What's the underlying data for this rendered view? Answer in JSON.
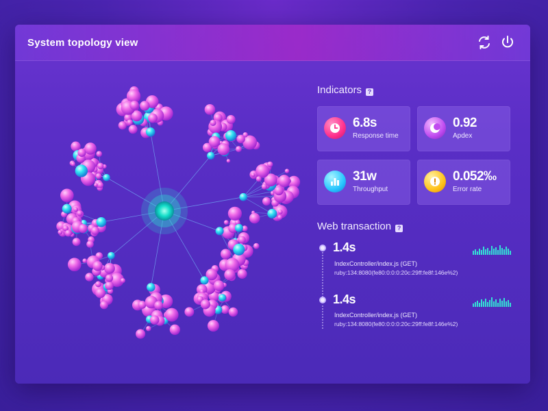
{
  "header": {
    "title": "System topology view"
  },
  "indicators": {
    "title": "Indicators",
    "help_glyph": "?",
    "cards": [
      {
        "value": "6.8s",
        "label": "Response time",
        "icon": "clock-icon",
        "color": "#ff2f8c"
      },
      {
        "value": "0.92",
        "label": "Apdex",
        "icon": "moon-icon",
        "color": "#c04bf0"
      },
      {
        "value": "31w",
        "label": "Throughput",
        "icon": "bar-chart-icon",
        "color": "#27c6ff"
      },
      {
        "value": "0.052‰",
        "label": "Error rate",
        "icon": "warning-icon",
        "color": "#ffc21a"
      }
    ]
  },
  "web_transaction": {
    "title": "Web transaction",
    "help_glyph": "?",
    "items": [
      {
        "value": "1.4s",
        "endpoint": "IndexController/index.js (GET)",
        "host": "ruby:134:8080(fe80:0:0:0:20c:29ff:fe8f:146e%2)"
      },
      {
        "value": "1.4s",
        "endpoint": "IndexController/index.js (GET)",
        "host": "ruby:134:8080(fe80:0:0:0:20c:29ff:fe8f:146e%2)"
      }
    ]
  }
}
